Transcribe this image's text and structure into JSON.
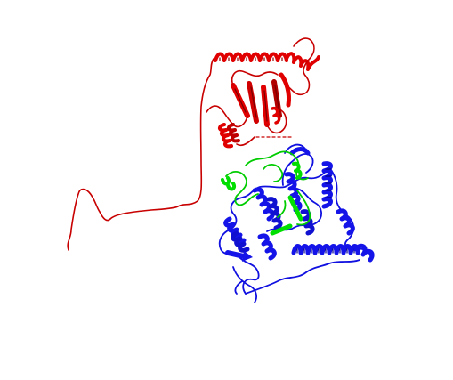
{
  "image": {
    "background": "#ffffff",
    "subject": "protein-ribbon-structure",
    "chains": [
      {
        "id": "red-domain",
        "color": "#e00000",
        "dark": "#8a0000"
      },
      {
        "id": "green-chain",
        "color": "#00d400",
        "dark": "#008a00"
      },
      {
        "id": "blue-domain",
        "color": "#1010e0",
        "dark": "#00008a"
      }
    ]
  }
}
